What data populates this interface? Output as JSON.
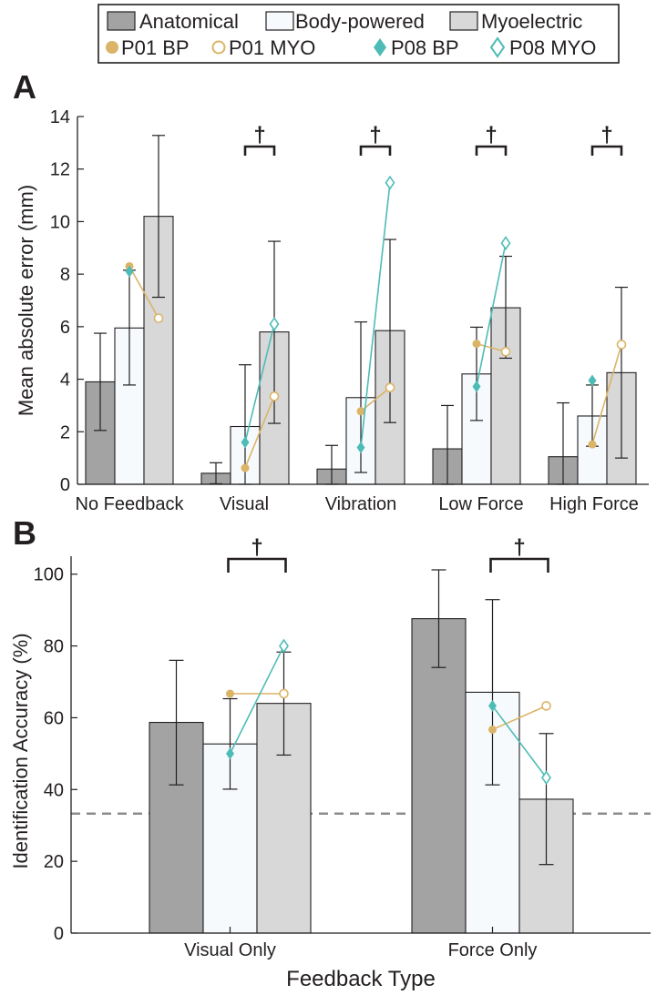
{
  "legend": {
    "bars": [
      {
        "label": "Anatomical",
        "color": "#a3a3a3"
      },
      {
        "label": "Body-powered",
        "color": "#f7fafd"
      },
      {
        "label": "Myoelectric",
        "color": "#d8d8d8"
      }
    ],
    "markers": [
      {
        "label": "P01 BP",
        "color": "#dbb467",
        "shape": "circle-filled"
      },
      {
        "label": "P01 MYO",
        "color": "#dbb467",
        "shape": "circle-open"
      },
      {
        "label": "P08 BP",
        "color": "#4ebcb6",
        "shape": "diamond-filled"
      },
      {
        "label": "P08 MYO",
        "color": "#4ebcb6",
        "shape": "diamond-open"
      }
    ]
  },
  "significance_symbol": "†",
  "chart_data": [
    {
      "panel": "A",
      "type": "bar",
      "title": "",
      "xlabel": "",
      "ylabel": "Mean absolute error (mm)",
      "ylim": [
        0,
        14
      ],
      "yticks": [
        0,
        2,
        4,
        6,
        8,
        10,
        12,
        14
      ],
      "categories": [
        "No Feedback",
        "Visual",
        "Vibration",
        "Low Force",
        "High Force"
      ],
      "series": [
        {
          "name": "Anatomical",
          "values": [
            3.9,
            0.42,
            0.58,
            1.35,
            1.05
          ],
          "err_low": [
            2.05,
            0.02,
            0.0,
            0.0,
            0.0
          ],
          "err_high": [
            5.75,
            0.82,
            1.48,
            3.0,
            3.1
          ]
        },
        {
          "name": "Body-powered",
          "values": [
            5.95,
            2.2,
            3.3,
            4.2,
            2.6
          ],
          "err_low": [
            3.78,
            0.0,
            0.45,
            2.43,
            1.45
          ],
          "err_high": [
            8.15,
            4.55,
            6.18,
            5.98,
            3.78
          ]
        },
        {
          "name": "Myoelectric",
          "values": [
            10.2,
            5.8,
            5.85,
            6.72,
            4.25
          ],
          "err_low": [
            7.12,
            2.32,
            2.35,
            4.8,
            1.0
          ],
          "err_high": [
            13.28,
            9.25,
            9.32,
            8.68,
            7.5
          ]
        }
      ],
      "participants": [
        {
          "name": "P01",
          "bp": [
            8.3,
            0.62,
            2.78,
            5.35,
            1.52
          ],
          "myo": [
            6.32,
            3.35,
            3.68,
            5.05,
            5.32
          ]
        },
        {
          "name": "P08",
          "bp": [
            8.1,
            1.6,
            1.4,
            3.72,
            3.95
          ],
          "myo": [
            null,
            6.1,
            11.48,
            9.18,
            null
          ]
        }
      ],
      "significance": [
        {
          "category": "Visual",
          "between": [
            "Body-powered",
            "Myoelectric"
          ]
        },
        {
          "category": "Vibration",
          "between": [
            "Body-powered",
            "Myoelectric"
          ]
        },
        {
          "category": "Low Force",
          "between": [
            "Body-powered",
            "Myoelectric"
          ]
        },
        {
          "category": "High Force",
          "between": [
            "Body-powered",
            "Myoelectric"
          ]
        }
      ]
    },
    {
      "panel": "B",
      "type": "bar",
      "title": "",
      "xlabel": "Feedback Type",
      "ylabel": "Identification Accuracy (%)",
      "ylim": [
        0,
        105
      ],
      "yticks": [
        0,
        20,
        40,
        60,
        80,
        100
      ],
      "chance_level": 33.3,
      "categories": [
        "Visual Only",
        "Force Only"
      ],
      "series": [
        {
          "name": "Anatomical",
          "values": [
            58.7,
            87.6
          ],
          "err_low": [
            41.3,
            74.0
          ],
          "err_high": [
            76.0,
            101.2
          ]
        },
        {
          "name": "Body-powered",
          "values": [
            52.7,
            67.1
          ],
          "err_low": [
            40.1,
            41.3
          ],
          "err_high": [
            65.3,
            92.9
          ]
        },
        {
          "name": "Myoelectric",
          "values": [
            64.0,
            37.3
          ],
          "err_low": [
            49.6,
            19.1
          ],
          "err_high": [
            78.3,
            55.6
          ]
        }
      ],
      "participants": [
        {
          "name": "P01",
          "bp": [
            66.7,
            56.7
          ],
          "myo": [
            66.7,
            63.3
          ]
        },
        {
          "name": "P08",
          "bp": [
            50.0,
            63.3
          ],
          "myo": [
            80.0,
            43.3
          ]
        }
      ],
      "significance": [
        {
          "category": "Visual Only",
          "between": [
            "Body-powered",
            "Myoelectric"
          ]
        },
        {
          "category": "Force Only",
          "between": [
            "Body-powered",
            "Myoelectric"
          ]
        }
      ]
    }
  ]
}
